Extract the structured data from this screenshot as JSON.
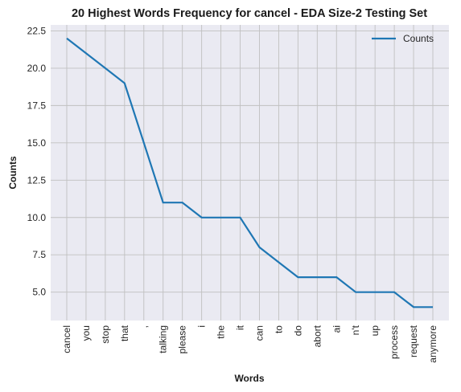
{
  "chart_data": {
    "type": "line",
    "title": "20 Highest Words Frequency for cancel - EDA Size-2 Testing Set",
    "xlabel": "Words",
    "ylabel": "Counts",
    "categories": [
      "cancel",
      "you",
      "stop",
      "that",
      ",",
      "talking",
      "please",
      "i",
      "the",
      "it",
      "can",
      "to",
      "do",
      "abort",
      "ai",
      "n't",
      "up",
      "process",
      "request",
      "anymore"
    ],
    "series": [
      {
        "name": "Counts",
        "values": [
          22,
          21,
          20,
          19,
          15,
          11,
          11,
          10,
          10,
          10,
          8,
          7,
          6,
          6,
          6,
          5,
          5,
          5,
          4,
          4
        ]
      }
    ],
    "ylim": [
      3.1,
      22.9
    ],
    "yticks": [
      "5.0",
      "7.5",
      "10.0",
      "12.5",
      "15.0",
      "17.5",
      "20.0",
      "22.5"
    ],
    "grid": true,
    "legend": "top-right",
    "colors": {
      "line": "#1f77b4",
      "plot_bg": "#eaeaf2",
      "grid": "#c0c0c0"
    }
  }
}
